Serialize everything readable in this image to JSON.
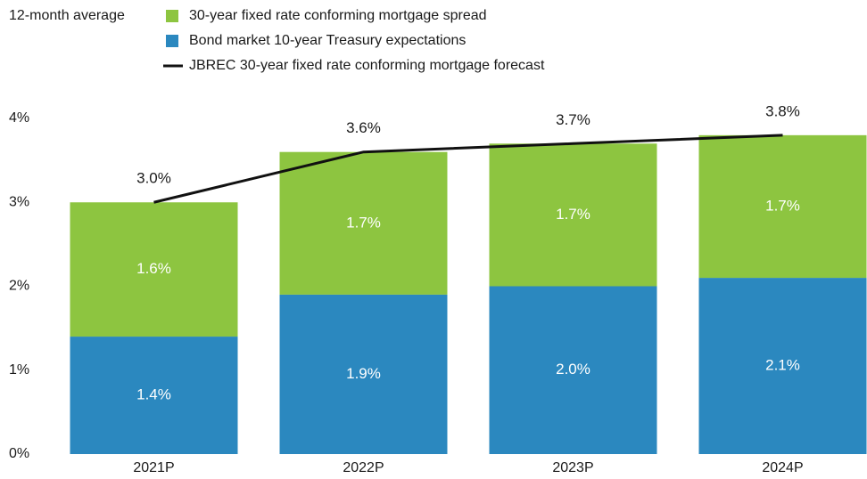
{
  "chart_data": {
    "type": "bar",
    "subtitle": "12-month average",
    "categories": [
      "2021P",
      "2022P",
      "2023P",
      "2024P"
    ],
    "series": [
      {
        "name": "30-year fixed rate conforming mortgage spread",
        "type": "bar",
        "color": "#8dc540",
        "values": [
          1.6,
          1.7,
          1.7,
          1.7
        ],
        "value_labels": [
          "1.6%",
          "1.7%",
          "1.7%",
          "1.7%"
        ]
      },
      {
        "name": "Bond market 10-year Treasury expectations",
        "type": "bar",
        "color": "#2b88bf",
        "values": [
          1.4,
          1.9,
          2.0,
          2.1
        ],
        "value_labels": [
          "1.4%",
          "1.9%",
          "2.0%",
          "2.1%"
        ]
      },
      {
        "name": "JBREC 30-year fixed rate conforming mortgage forecast",
        "type": "line",
        "color": "#111111",
        "values": [
          3.0,
          3.6,
          3.7,
          3.8
        ],
        "value_labels": [
          "3.0%",
          "3.6%",
          "3.7%",
          "3.8%"
        ]
      }
    ],
    "ylim": [
      0,
      4
    ],
    "yticks": [
      {
        "value": 0,
        "label": "0%"
      },
      {
        "value": 1,
        "label": "1%"
      },
      {
        "value": 2,
        "label": "2%"
      },
      {
        "value": 3,
        "label": "3%"
      },
      {
        "value": 4,
        "label": "4%"
      }
    ],
    "grid": false
  }
}
